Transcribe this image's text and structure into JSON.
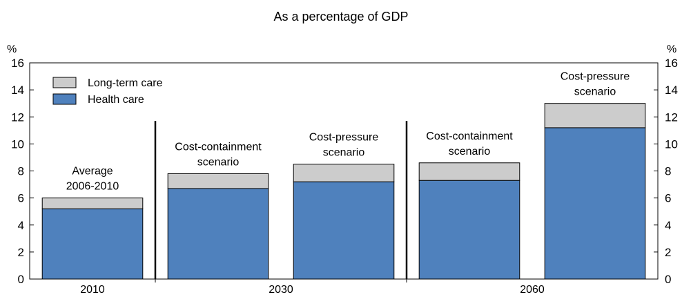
{
  "chart_data": {
    "type": "bar",
    "stacked": true,
    "title": "As a percentage of GDP",
    "ylabel_left": "%",
    "ylabel_right": "%",
    "ylim": [
      0,
      16
    ],
    "yticks": [
      0,
      2,
      4,
      6,
      8,
      10,
      12,
      14,
      16
    ],
    "grid": false,
    "legend_position": "top-left",
    "groups": [
      "2010",
      "2030",
      "2060"
    ],
    "bars": [
      {
        "group": "2010",
        "label_lines": [
          "Average",
          "2006-2010"
        ],
        "health_care": 5.2,
        "long_term_care": 0.8
      },
      {
        "group": "2030",
        "label_lines": [
          "Cost-containment",
          "scenario"
        ],
        "health_care": 6.7,
        "long_term_care": 1.1
      },
      {
        "group": "2030",
        "label_lines": [
          "Cost-pressure",
          "scenario"
        ],
        "health_care": 7.2,
        "long_term_care": 1.3
      },
      {
        "group": "2060",
        "label_lines": [
          "Cost-containment",
          "scenario"
        ],
        "health_care": 7.3,
        "long_term_care": 1.3
      },
      {
        "group": "2060",
        "label_lines": [
          "Cost-pressure",
          "scenario"
        ],
        "health_care": 11.2,
        "long_term_care": 1.8
      }
    ],
    "series": [
      {
        "name": "Long-term care",
        "key": "long_term_care",
        "color": "#cccccc"
      },
      {
        "name": "Health care",
        "key": "health_care",
        "color": "#4f81bd"
      }
    ]
  }
}
